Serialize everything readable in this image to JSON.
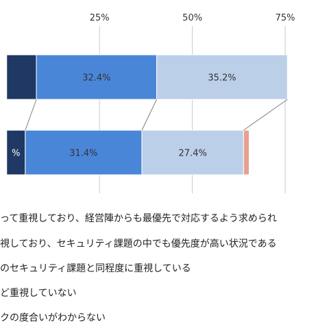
{
  "chart_data": {
    "type": "bar",
    "stacked": true,
    "orientation": "horizontal",
    "x_ticks": [
      "25%",
      "50%",
      "75%"
    ],
    "x_tick_values": [
      25,
      50,
      75
    ],
    "xlim": [
      -1.8,
      86.8
    ],
    "grid": true,
    "rows": [
      {
        "segments": [
          {
            "value": 8,
            "color": "#1f3864",
            "label": ""
          },
          {
            "value": 32.4,
            "color": "#4a86d8",
            "label": "32.4%"
          },
          {
            "value": 35.2,
            "color": "#bccfe8",
            "label": "35.2%"
          }
        ]
      },
      {
        "segments": [
          {
            "value": 5,
            "color": "#1f3864",
            "label": "%"
          },
          {
            "value": 31.4,
            "color": "#4a86d8",
            "label": "31.4%"
          },
          {
            "value": 27.4,
            "color": "#bccfe8",
            "label": "27.4%"
          },
          {
            "value": 1.5,
            "color": "#e8a091",
            "label": ""
          }
        ]
      }
    ],
    "legend": [
      "って重視しており、経営陣からも最優先で対応するよう求められ",
      "視しており、セキュリティ課題の中でも優先度が高い状況である",
      "のセキュリティ課題と同程度に重視している",
      "ど重視していない",
      "クの度合いがわからない"
    ]
  }
}
